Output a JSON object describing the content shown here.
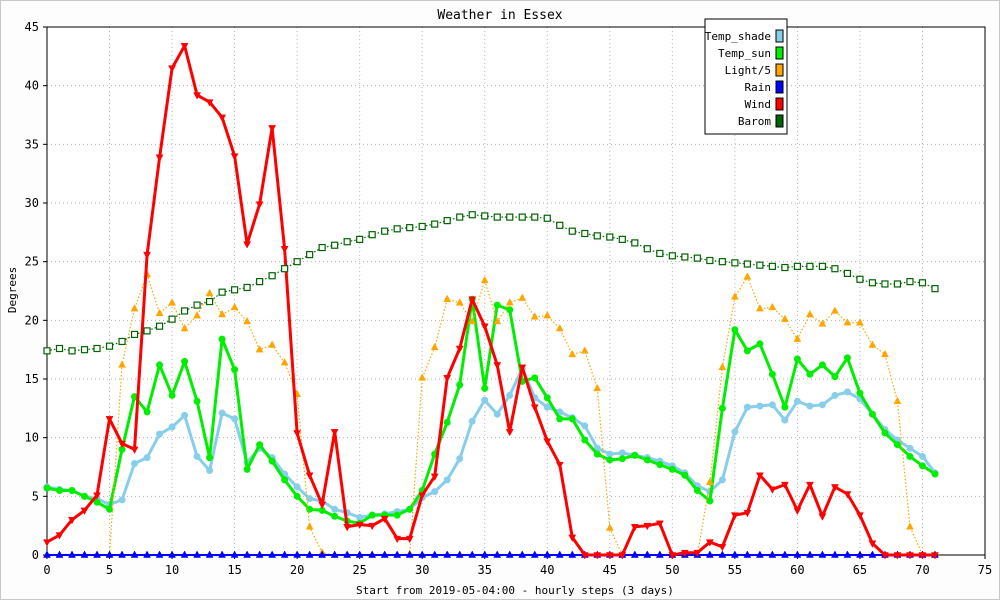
{
  "chart_data": {
    "type": "line",
    "title": "Weather in Essex",
    "xlabel": "Start from 2019-05-04:00 - hourly steps (3 days)",
    "ylabel": "Degrees",
    "xlim": [
      0,
      75
    ],
    "ylim": [
      0,
      45
    ],
    "x_ticks": [
      0,
      5,
      10,
      15,
      20,
      25,
      30,
      35,
      40,
      45,
      50,
      55,
      60,
      65,
      70,
      75
    ],
    "y_ticks": [
      0,
      5,
      10,
      15,
      20,
      25,
      30,
      35,
      40,
      45
    ],
    "grid": true,
    "legend_position": "top-right",
    "x": [
      0,
      1,
      2,
      3,
      4,
      5,
      6,
      7,
      8,
      9,
      10,
      11,
      12,
      13,
      14,
      15,
      16,
      17,
      18,
      19,
      20,
      21,
      22,
      23,
      24,
      25,
      26,
      27,
      28,
      29,
      30,
      31,
      32,
      33,
      34,
      35,
      36,
      37,
      38,
      39,
      40,
      41,
      42,
      43,
      44,
      45,
      46,
      47,
      48,
      49,
      50,
      51,
      52,
      53,
      54,
      55,
      56,
      57,
      58,
      59,
      60,
      61,
      62,
      63,
      64,
      65,
      66,
      67,
      68,
      69,
      70,
      71
    ],
    "series": [
      {
        "name": "Temp_shade",
        "color": "#87ceeb",
        "marker": "circle",
        "values": [
          5.8,
          5.6,
          5.5,
          5.0,
          4.8,
          4.3,
          4.7,
          7.8,
          8.3,
          10.3,
          10.9,
          11.9,
          8.4,
          7.2,
          12.1,
          11.6,
          7.9,
          9.1,
          8.3,
          6.9,
          5.8,
          4.8,
          4.6,
          3.9,
          3.6,
          3.2,
          3.4,
          3.5,
          3.7,
          3.9,
          4.9,
          5.4,
          6.4,
          8.2,
          11.4,
          13.2,
          12.0,
          13.6,
          15.9,
          13.4,
          12.6,
          12.2,
          11.7,
          11.0,
          9.1,
          8.6,
          8.7,
          8.5,
          8.3,
          8.0,
          7.6,
          7.0,
          5.9,
          5.4,
          6.4,
          10.5,
          12.6,
          12.7,
          12.8,
          11.5,
          13.1,
          12.7,
          12.8,
          13.6,
          13.9,
          13.3,
          12.0,
          10.7,
          9.8,
          9.1,
          8.4,
          7.0
        ]
      },
      {
        "name": "Temp_sun",
        "color": "#00ee00",
        "marker": "circle",
        "values": [
          5.7,
          5.5,
          5.5,
          5.0,
          4.5,
          3.9,
          9.0,
          13.5,
          12.2,
          16.2,
          13.6,
          16.5,
          13.1,
          8.3,
          18.4,
          15.8,
          7.3,
          9.4,
          8.0,
          6.4,
          5.0,
          3.9,
          3.8,
          3.3,
          2.9,
          2.7,
          3.4,
          3.4,
          3.4,
          3.9,
          5.5,
          8.6,
          11.3,
          14.5,
          21.8,
          14.2,
          21.3,
          20.9,
          14.8,
          15.1,
          13.4,
          11.6,
          11.6,
          9.8,
          8.6,
          8.1,
          8.2,
          8.5,
          8.1,
          7.7,
          7.3,
          6.8,
          5.5,
          4.6,
          12.5,
          19.2,
          17.4,
          18.0,
          15.4,
          12.6,
          16.7,
          15.4,
          16.2,
          15.2,
          16.8,
          13.8,
          12.0,
          10.4,
          9.4,
          8.4,
          7.6,
          6.9
        ]
      },
      {
        "name": "Light/5",
        "color": "#ffa500",
        "marker": "triangle-up",
        "values": [
          0,
          0,
          0,
          0,
          0,
          0,
          16.2,
          21.0,
          23.9,
          20.6,
          21.5,
          19.3,
          20.4,
          22.3,
          20.5,
          21.1,
          19.9,
          17.5,
          17.9,
          16.4,
          13.7,
          2.4,
          0.2,
          0,
          0,
          0,
          0,
          0,
          0,
          0.1,
          15.1,
          17.7,
          21.8,
          21.5,
          19.9,
          23.4,
          19.9,
          21.5,
          21.9,
          20.3,
          20.4,
          19.3,
          17.1,
          17.4,
          14.2,
          2.3,
          0,
          0,
          0,
          0,
          0,
          0,
          0,
          6.2,
          16.0,
          22.0,
          23.7,
          21.0,
          21.1,
          20.1,
          18.4,
          20.5,
          19.7,
          20.8,
          19.8,
          19.8,
          17.9,
          17.1,
          13.1,
          2.4,
          0,
          0
        ]
      },
      {
        "name": "Rain",
        "color": "#0000ff",
        "marker": "triangle-up",
        "values": [
          0,
          0,
          0,
          0,
          0,
          0,
          0,
          0,
          0,
          0,
          0,
          0,
          0,
          0,
          0,
          0,
          0,
          0,
          0,
          0,
          0,
          0,
          0,
          0,
          0,
          0,
          0,
          0,
          0,
          0,
          0,
          0,
          0,
          0,
          0,
          0,
          0,
          0,
          0,
          0,
          0,
          0,
          0,
          0,
          0,
          0,
          0,
          0,
          0,
          0,
          0,
          0,
          0,
          0,
          0,
          0,
          0,
          0,
          0,
          0,
          0,
          0,
          0,
          0,
          0,
          0,
          0,
          0,
          0,
          0,
          0,
          0
        ]
      },
      {
        "name": "Wind",
        "color": "#ff0000",
        "marker": "triangle-down",
        "values": [
          1.1,
          1.7,
          3.0,
          3.8,
          5.1,
          11.6,
          9.5,
          9.0,
          25.6,
          33.9,
          41.5,
          43.4,
          39.2,
          38.6,
          37.3,
          34.0,
          26.5,
          29.9,
          36.4,
          26.1,
          10.4,
          6.8,
          4.3,
          10.5,
          2.4,
          2.6,
          2.5,
          3.1,
          1.4,
          1.4,
          5.1,
          6.7,
          15.1,
          17.6,
          21.8,
          19.5,
          16.2,
          10.5,
          16.0,
          12.6,
          9.7,
          7.7,
          1.5,
          0,
          0,
          0,
          0,
          2.4,
          2.5,
          2.7,
          0,
          0.2,
          0.2,
          1.1,
          0.7,
          3.4,
          3.6,
          6.8,
          5.6,
          6.0,
          3.8,
          6.0,
          3.3,
          5.8,
          5.2,
          3.4,
          1.0,
          0,
          0,
          0,
          0,
          0
        ]
      },
      {
        "name": "Barom",
        "color": "#006400",
        "marker": "square-hollow",
        "values": [
          17.4,
          17.6,
          17.4,
          17.5,
          17.6,
          17.8,
          18.2,
          18.8,
          19.1,
          19.5,
          20.1,
          20.8,
          21.3,
          21.6,
          22.4,
          22.6,
          22.8,
          23.3,
          23.8,
          24.4,
          25.0,
          25.6,
          26.2,
          26.4,
          26.7,
          26.9,
          27.3,
          27.6,
          27.8,
          27.9,
          28.0,
          28.2,
          28.5,
          28.8,
          29.0,
          28.9,
          28.8,
          28.8,
          28.8,
          28.8,
          28.7,
          28.1,
          27.6,
          27.4,
          27.2,
          27.1,
          26.9,
          26.6,
          26.1,
          25.7,
          25.5,
          25.4,
          25.3,
          25.1,
          25.0,
          24.9,
          24.8,
          24.7,
          24.6,
          24.5,
          24.6,
          24.6,
          24.6,
          24.4,
          24.0,
          23.5,
          23.2,
          23.1,
          23.1,
          23.3,
          23.2,
          22.7
        ]
      }
    ]
  }
}
